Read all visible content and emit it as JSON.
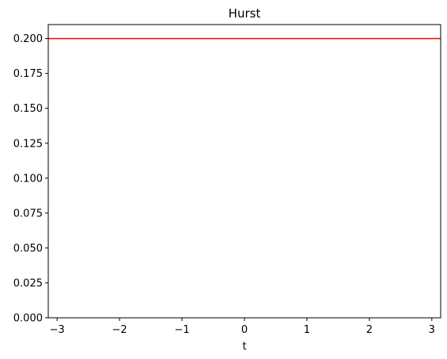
{
  "chart_data": {
    "type": "line",
    "title": "Hurst",
    "xlabel": "t",
    "ylabel": "",
    "xlim": [
      -3.14159,
      3.14159
    ],
    "ylim": [
      0.0,
      0.21
    ],
    "x_ticks": [
      -3,
      -2,
      -1,
      0,
      1,
      2,
      3
    ],
    "x_tick_labels": [
      "−3",
      "−2",
      "−1",
      "0",
      "1",
      "2",
      "3"
    ],
    "y_ticks": [
      0.0,
      0.025,
      0.05,
      0.075,
      0.1,
      0.125,
      0.15,
      0.175,
      0.2
    ],
    "y_tick_labels": [
      "0.000",
      "0.025",
      "0.050",
      "0.075",
      "0.100",
      "0.125",
      "0.150",
      "0.175",
      "0.200"
    ],
    "grid": false,
    "series": [
      {
        "color": "#ff0000",
        "x": [
          -3.14159,
          3.14159
        ],
        "y": [
          0.2,
          0.2
        ]
      }
    ]
  }
}
